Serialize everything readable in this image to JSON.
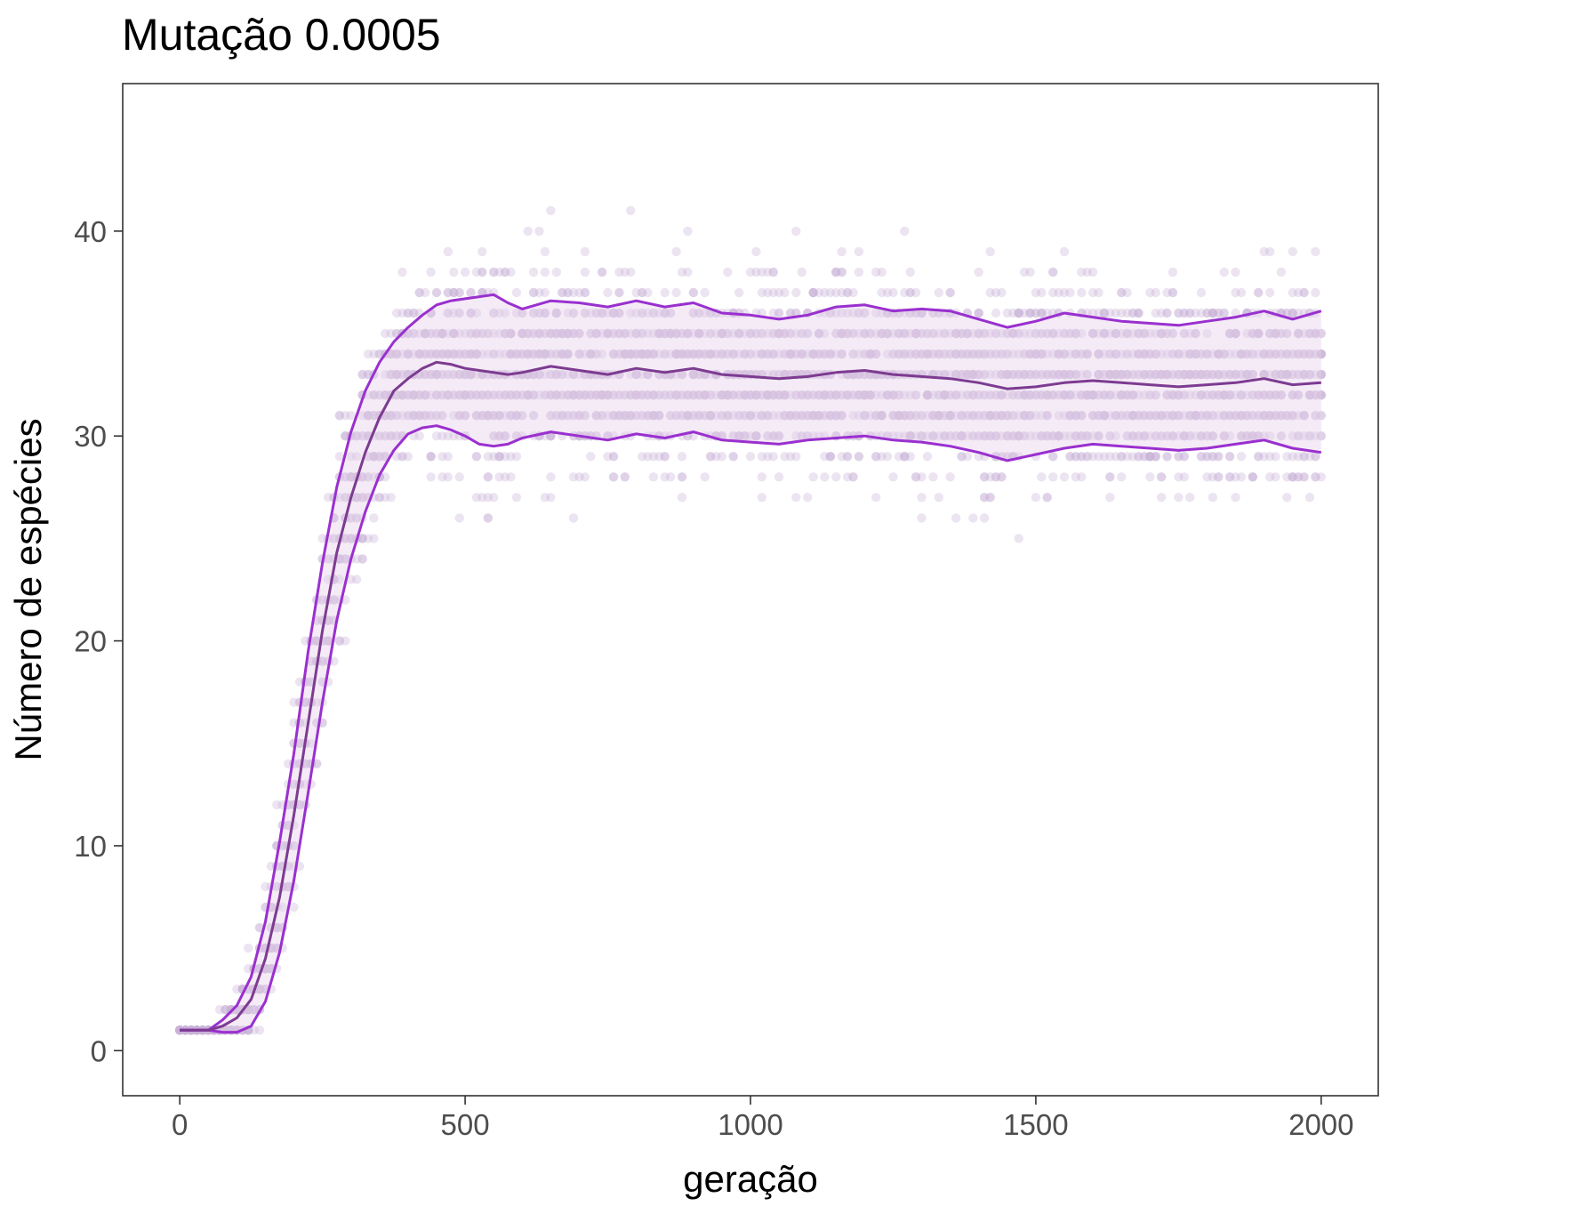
{
  "chart_data": {
    "type": "scatter",
    "title": "Mutação 0.0005",
    "xlabel": "geração",
    "ylabel": "Número de espécies",
    "xlim": [
      -100,
      2100
    ],
    "ylim": [
      -2.2,
      47.2
    ],
    "xticks": [
      0,
      500,
      1000,
      1500,
      2000
    ],
    "yticks": [
      0,
      10,
      20,
      30,
      40
    ],
    "xtick_labels": [
      "0",
      "500",
      "1000",
      "1500",
      "2000"
    ],
    "ytick_labels": [
      "0",
      "10",
      "20",
      "30",
      "40"
    ],
    "grid": false,
    "colors": {
      "points": "#c9b3d6",
      "band": "#e6d2ec",
      "bounds": "#9a30cf",
      "mean": "#7d3b91"
    },
    "series": [
      {
        "kind": "mean",
        "x": [
          0,
          50,
          75,
          100,
          125,
          150,
          175,
          200,
          225,
          250,
          275,
          300,
          325,
          350,
          375,
          400,
          425,
          450,
          475,
          500,
          525,
          550,
          575,
          600,
          650,
          700,
          750,
          800,
          850,
          900,
          950,
          1000,
          1050,
          1100,
          1150,
          1200,
          1250,
          1300,
          1350,
          1400,
          1450,
          1500,
          1550,
          1600,
          1650,
          1700,
          1750,
          1800,
          1850,
          1900,
          1950,
          2000
        ],
        "y": [
          1,
          1,
          1.2,
          1.6,
          2.5,
          4.5,
          7.5,
          11.5,
          16,
          20.5,
          24.3,
          27,
          29.2,
          30.9,
          32.2,
          32.8,
          33.3,
          33.6,
          33.5,
          33.3,
          33.2,
          33.1,
          33.0,
          33.1,
          33.4,
          33.2,
          33.0,
          33.3,
          33.1,
          33.3,
          33.0,
          32.9,
          32.8,
          32.9,
          33.1,
          33.2,
          33.0,
          32.9,
          32.8,
          32.6,
          32.3,
          32.4,
          32.6,
          32.7,
          32.6,
          32.5,
          32.4,
          32.5,
          32.6,
          32.8,
          32.5,
          32.6
        ]
      },
      {
        "kind": "upper",
        "x": [
          0,
          50,
          75,
          100,
          125,
          150,
          175,
          200,
          225,
          250,
          275,
          300,
          325,
          350,
          375,
          400,
          425,
          450,
          475,
          500,
          525,
          550,
          575,
          600,
          650,
          700,
          750,
          800,
          850,
          900,
          950,
          1000,
          1050,
          1100,
          1150,
          1200,
          1250,
          1300,
          1350,
          1400,
          1450,
          1500,
          1550,
          1600,
          1650,
          1700,
          1750,
          1800,
          1850,
          1900,
          1950,
          2000
        ],
        "y": [
          1,
          1,
          1.5,
          2.2,
          3.6,
          6.3,
          10.2,
          14.5,
          19.5,
          23.8,
          27.5,
          30.2,
          32.2,
          33.6,
          34.6,
          35.3,
          35.9,
          36.4,
          36.6,
          36.7,
          36.8,
          36.9,
          36.5,
          36.2,
          36.6,
          36.5,
          36.3,
          36.6,
          36.3,
          36.5,
          36.0,
          35.9,
          35.7,
          35.9,
          36.3,
          36.4,
          36.1,
          36.2,
          36.1,
          35.7,
          35.3,
          35.6,
          36.0,
          35.8,
          35.6,
          35.5,
          35.4,
          35.6,
          35.8,
          36.1,
          35.7,
          36.1
        ]
      },
      {
        "kind": "lower",
        "x": [
          0,
          50,
          75,
          100,
          125,
          150,
          175,
          200,
          225,
          250,
          275,
          300,
          325,
          350,
          375,
          400,
          425,
          450,
          475,
          500,
          525,
          550,
          575,
          600,
          650,
          700,
          750,
          800,
          850,
          900,
          950,
          1000,
          1050,
          1100,
          1150,
          1200,
          1250,
          1300,
          1350,
          1400,
          1450,
          1500,
          1550,
          1600,
          1650,
          1700,
          1750,
          1800,
          1850,
          1900,
          1950,
          2000
        ],
        "y": [
          1,
          1,
          0.9,
          0.9,
          1.2,
          2.4,
          4.8,
          8.3,
          12.6,
          17.0,
          21.0,
          24.0,
          26.3,
          28.1,
          29.3,
          30.1,
          30.4,
          30.5,
          30.3,
          30.0,
          29.6,
          29.5,
          29.6,
          29.9,
          30.2,
          30.0,
          29.8,
          30.1,
          29.9,
          30.2,
          29.8,
          29.7,
          29.6,
          29.8,
          29.9,
          30.0,
          29.8,
          29.7,
          29.5,
          29.2,
          28.8,
          29.1,
          29.4,
          29.6,
          29.5,
          29.4,
          29.3,
          29.4,
          29.6,
          29.8,
          29.4,
          29.2
        ]
      }
    ],
    "scatter": {
      "x_step": 10,
      "runs_per_generation": 20,
      "marker": "circle",
      "opacity": 0.35
    }
  }
}
